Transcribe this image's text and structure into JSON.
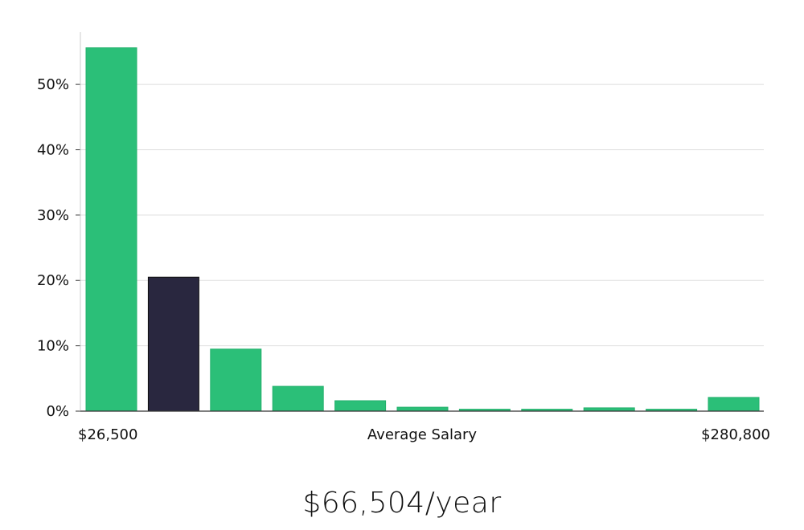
{
  "chart_data": {
    "type": "bar",
    "title": "",
    "xlabel": "Average Salary",
    "ylabel": "",
    "x_min_label": "$26,500",
    "x_max_label": "$280,800",
    "ylim": [
      0,
      58
    ],
    "yticks": [
      0,
      10,
      20,
      30,
      40,
      50
    ],
    "ytick_labels": [
      "0%",
      "10%",
      "20%",
      "30%",
      "40%",
      "50%"
    ],
    "values": [
      55.6,
      20.5,
      9.5,
      3.8,
      1.6,
      0.6,
      0.3,
      0.3,
      0.5,
      0.3,
      2.1
    ],
    "highlight_index": 1,
    "colors": {
      "bar": "#2bbf78",
      "highlight": "#29273f",
      "grid": "#dddddd",
      "axis": "#cccccc"
    }
  },
  "summary": {
    "average_salary_label": "$66,504/year"
  }
}
